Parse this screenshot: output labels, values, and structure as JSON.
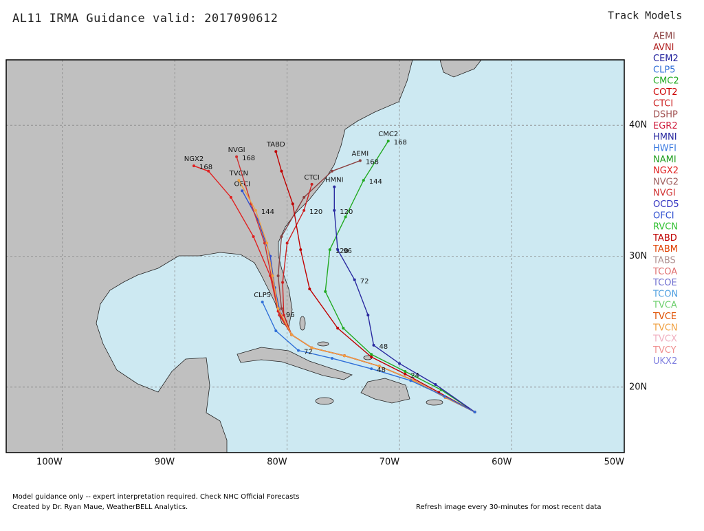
{
  "header": {
    "title": "AL11 IRMA Guidance valid: 2017090612"
  },
  "legend": {
    "title": "Track Models",
    "models": [
      {
        "name": "AEMI",
        "color": "#8b4040"
      },
      {
        "name": "AVNI",
        "color": "#b22222"
      },
      {
        "name": "CEM2",
        "color": "#1a1a9a"
      },
      {
        "name": "CLP5",
        "color": "#2f6fd8"
      },
      {
        "name": "CMC2",
        "color": "#22aa22"
      },
      {
        "name": "COT2",
        "color": "#cc0000"
      },
      {
        "name": "CTCI",
        "color": "#cc2020"
      },
      {
        "name": "DSHP",
        "color": "#a05050"
      },
      {
        "name": "EGR2",
        "color": "#d02040"
      },
      {
        "name": "HMNI",
        "color": "#2a2aa0"
      },
      {
        "name": "HWFI",
        "color": "#3a7ae0"
      },
      {
        "name": "NAMI",
        "color": "#22a022"
      },
      {
        "name": "NGX2",
        "color": "#e02020"
      },
      {
        "name": "NVG2",
        "color": "#a06060"
      },
      {
        "name": "NVGI",
        "color": "#d03030"
      },
      {
        "name": "OCD5",
        "color": "#3030c0"
      },
      {
        "name": "OFCI",
        "color": "#3050d0"
      },
      {
        "name": "RVCN",
        "color": "#30c030"
      },
      {
        "name": "TABD",
        "color": "#c00000"
      },
      {
        "name": "TABM",
        "color": "#e04000"
      },
      {
        "name": "TABS",
        "color": "#b09090"
      },
      {
        "name": "TCOA",
        "color": "#e07070"
      },
      {
        "name": "TCOE",
        "color": "#7070d0"
      },
      {
        "name": "TCON",
        "color": "#50a0e0"
      },
      {
        "name": "TVCA",
        "color": "#70d070"
      },
      {
        "name": "TVCE",
        "color": "#e05000"
      },
      {
        "name": "TVCN",
        "color": "#f0a040"
      },
      {
        "name": "TVCX",
        "color": "#f0b0c0"
      },
      {
        "name": "TVCY",
        "color": "#f09090"
      },
      {
        "name": "UKX2",
        "color": "#8080e0"
      }
    ]
  },
  "map": {
    "lon_range": [
      -105,
      -50
    ],
    "lat_range": [
      15,
      45
    ],
    "lon_ticks": [
      {
        "value": -100,
        "label": "100W"
      },
      {
        "value": -90,
        "label": "90W"
      },
      {
        "value": -80,
        "label": "80W"
      },
      {
        "value": -70,
        "label": "70W"
      },
      {
        "value": -60,
        "label": "60W"
      },
      {
        "value": -50,
        "label": "50W"
      }
    ],
    "lat_ticks": [
      {
        "value": 20,
        "label": "20N"
      },
      {
        "value": 30,
        "label": "30N"
      },
      {
        "value": 40,
        "label": "40N"
      }
    ],
    "tracks": [
      {
        "model": "OFCI",
        "color": "#3050d0",
        "points": [
          [
            -63.3,
            18.1
          ],
          [
            -65.9,
            19.2
          ],
          [
            -68.7,
            20.5
          ],
          [
            -71.8,
            21.6
          ],
          [
            -74.9,
            22.4
          ],
          [
            -77.8,
            23.0
          ],
          [
            -79.6,
            24.0
          ],
          [
            -80.6,
            25.6
          ],
          [
            -81.1,
            27.6
          ],
          [
            -81.5,
            30.0
          ],
          [
            -82.6,
            32.8
          ],
          [
            -84.0,
            35.0
          ]
        ],
        "labels": [
          {
            "at": 7,
            "text": "96"
          }
        ]
      },
      {
        "model": "CMC2",
        "color": "#22aa22",
        "points": [
          [
            -63.3,
            18.1
          ],
          [
            -66.3,
            19.8
          ],
          [
            -69.5,
            21.2
          ],
          [
            -72.5,
            22.5
          ],
          [
            -75.0,
            24.5
          ],
          [
            -76.6,
            27.3
          ],
          [
            -76.2,
            30.5
          ],
          [
            -74.8,
            33.0
          ],
          [
            -73.2,
            35.8
          ],
          [
            -71.0,
            38.8
          ]
        ],
        "labels": [
          {
            "at": 6,
            "text": "120"
          },
          {
            "at": 8,
            "text": "144"
          },
          {
            "at": 9,
            "text": "168"
          }
        ]
      },
      {
        "model": "HMNI",
        "color": "#2a2aa0",
        "points": [
          [
            -63.3,
            18.1
          ],
          [
            -66.8,
            20.2
          ],
          [
            -70.0,
            21.8
          ],
          [
            -72.3,
            23.2
          ],
          [
            -72.8,
            25.5
          ],
          [
            -74.0,
            28.2
          ],
          [
            -75.5,
            30.5
          ],
          [
            -75.8,
            33.5
          ],
          [
            -75.8,
            35.3
          ]
        ],
        "labels": [
          {
            "at": 3,
            "text": "48"
          },
          {
            "at": 5,
            "text": "72"
          },
          {
            "at": 6,
            "text": "96"
          },
          {
            "at": 7,
            "text": "120"
          }
        ]
      },
      {
        "model": "AEMI",
        "color": "#8b4040",
        "points": [
          [
            -63.3,
            18.1
          ],
          [
            -65.9,
            19.2
          ],
          [
            -68.7,
            20.5
          ],
          [
            -71.8,
            21.6
          ],
          [
            -74.9,
            22.4
          ],
          [
            -77.8,
            23.0
          ],
          [
            -79.6,
            24.0
          ],
          [
            -80.5,
            26.0
          ],
          [
            -80.8,
            28.5
          ],
          [
            -80.5,
            31.5
          ],
          [
            -78.5,
            34.5
          ],
          [
            -76.0,
            36.5
          ],
          [
            -73.5,
            37.3
          ]
        ],
        "labels": [
          {
            "at": 12,
            "text": "168"
          }
        ]
      },
      {
        "model": "NGX2",
        "color": "#e02020",
        "points": [
          [
            -63.3,
            18.1
          ],
          [
            -65.9,
            19.2
          ],
          [
            -68.7,
            20.5
          ],
          [
            -71.8,
            21.6
          ],
          [
            -74.9,
            22.4
          ],
          [
            -77.8,
            23.0
          ],
          [
            -79.6,
            24.0
          ],
          [
            -80.8,
            25.8
          ],
          [
            -81.5,
            28.5
          ],
          [
            -83.0,
            31.5
          ],
          [
            -85.0,
            34.5
          ],
          [
            -87.0,
            36.5
          ],
          [
            -88.3,
            36.9
          ]
        ],
        "labels": [
          {
            "at": 12,
            "text": "168"
          }
        ]
      },
      {
        "model": "NVGI",
        "color": "#d03030",
        "points": [
          [
            -63.3,
            18.1
          ],
          [
            -65.9,
            19.2
          ],
          [
            -68.7,
            20.5
          ],
          [
            -71.8,
            21.6
          ],
          [
            -74.9,
            22.4
          ],
          [
            -77.8,
            23.0
          ],
          [
            -79.6,
            24.0
          ],
          [
            -80.7,
            25.5
          ],
          [
            -81.3,
            28.0
          ],
          [
            -82.0,
            31.0
          ],
          [
            -83.2,
            34.0
          ],
          [
            -84.5,
            37.6
          ]
        ],
        "labels": [
          {
            "at": 11,
            "text": "168"
          }
        ]
      },
      {
        "model": "CTCI",
        "color": "#cc2020",
        "points": [
          [
            -63.3,
            18.1
          ],
          [
            -65.9,
            19.2
          ],
          [
            -68.7,
            20.5
          ],
          [
            -71.8,
            21.6
          ],
          [
            -74.9,
            22.4
          ],
          [
            -77.8,
            23.0
          ],
          [
            -79.6,
            24.0
          ],
          [
            -80.3,
            25.5
          ],
          [
            -80.4,
            28.0
          ],
          [
            -80.0,
            31.0
          ],
          [
            -78.5,
            33.5
          ],
          [
            -77.8,
            35.5
          ]
        ],
        "labels": [
          {
            "at": 10,
            "text": "120"
          }
        ]
      },
      {
        "model": "TVCN",
        "color": "#f0a040",
        "points": [
          [
            -63.3,
            18.1
          ],
          [
            -65.9,
            19.2
          ],
          [
            -68.7,
            20.5
          ],
          [
            -71.8,
            21.6
          ],
          [
            -74.9,
            22.4
          ],
          [
            -77.8,
            23.0
          ],
          [
            -79.6,
            24.0
          ],
          [
            -80.8,
            26.0
          ],
          [
            -81.3,
            28.5
          ],
          [
            -81.8,
            31.0
          ],
          [
            -82.8,
            33.5
          ],
          [
            -84.3,
            35.8
          ]
        ],
        "labels": [
          {
            "at": 10,
            "text": "144"
          }
        ]
      },
      {
        "model": "TABD",
        "color": "#c00000",
        "points": [
          [
            -63.3,
            18.1
          ],
          [
            -66.5,
            19.6
          ],
          [
            -69.5,
            21.0
          ],
          [
            -72.5,
            22.3
          ],
          [
            -75.5,
            24.5
          ],
          [
            -78.0,
            27.5
          ],
          [
            -78.8,
            30.5
          ],
          [
            -79.5,
            34.0
          ],
          [
            -80.5,
            36.5
          ],
          [
            -81.0,
            38.0
          ]
        ],
        "labels": [
          {
            "at": 2,
            "text": "24"
          }
        ]
      },
      {
        "model": "CLP5",
        "color": "#2f6fd8",
        "points": [
          [
            -63.3,
            18.1
          ],
          [
            -66.0,
            19.3
          ],
          [
            -69.0,
            20.5
          ],
          [
            -72.5,
            21.4
          ],
          [
            -76.0,
            22.2
          ],
          [
            -79.0,
            22.8
          ],
          [
            -81.0,
            24.3
          ],
          [
            -82.2,
            26.5
          ]
        ],
        "labels": [
          {
            "at": 3,
            "text": "48"
          },
          {
            "at": 5,
            "text": "72"
          }
        ]
      }
    ]
  },
  "footer": {
    "line1": "Model guidance only -- expert interpretation required.  Check NHC Official Forecasts",
    "line2": "Created by Dr. Ryan Maue, WeatherBELL Analytics.",
    "refresh": "Refresh image every 30-minutes for most recent data"
  }
}
